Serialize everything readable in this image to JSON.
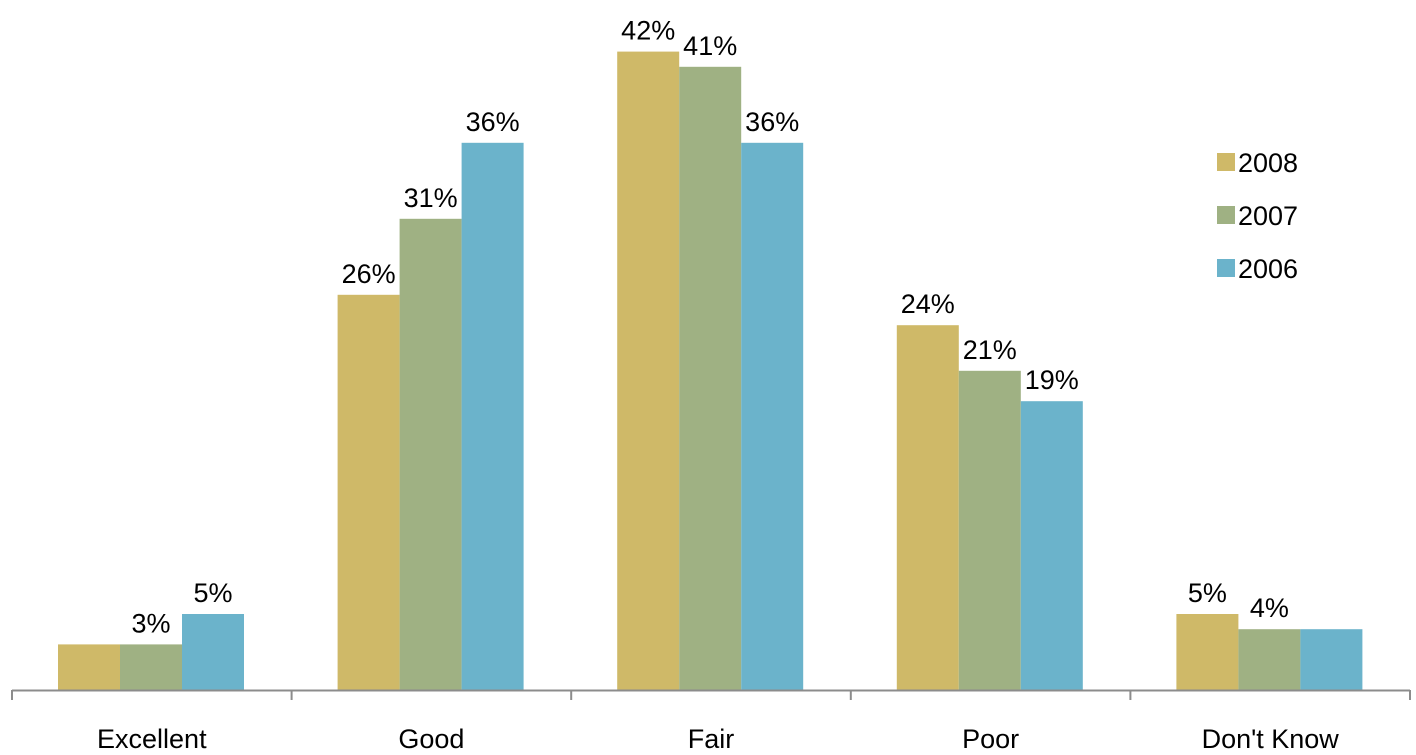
{
  "chart_data": {
    "type": "bar",
    "title": "",
    "xlabel": "",
    "ylabel": "",
    "categories": [
      "Excellent",
      "Good",
      "Fair",
      "Poor",
      "Don't Know"
    ],
    "series": [
      {
        "name": "2008",
        "color": "#cfb968",
        "values": [
          3,
          26,
          42,
          24,
          5
        ]
      },
      {
        "name": "2007",
        "color": "#9fb183",
        "values": [
          3,
          31,
          41,
          21,
          4
        ]
      },
      {
        "name": "2006",
        "color": "#6bb3cb",
        "values": [
          5,
          36,
          36,
          19,
          4
        ]
      }
    ],
    "data_labels": [
      [
        "",
        "26%",
        "42%",
        "24%",
        "5%"
      ],
      [
        "3%",
        "31%",
        "41%",
        "21%",
        "4%"
      ],
      [
        "5%",
        "36%",
        "36%",
        "19%",
        ""
      ]
    ],
    "ylim": [
      0,
      45
    ],
    "grid": false,
    "legend_position": "right"
  }
}
